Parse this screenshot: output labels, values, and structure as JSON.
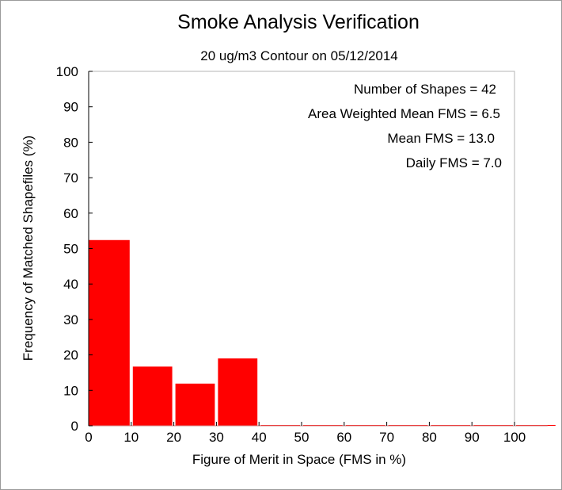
{
  "chart_data": {
    "type": "bar",
    "title": "Smoke Analysis Verification",
    "subtitle": "20 ug/m3 Contour on 05/12/2014",
    "xlabel": "Figure of Merit in Space (FMS in %)",
    "ylabel": "Frequency of Matched Shapefiles (%)",
    "xlim": [
      0,
      110
    ],
    "ylim": [
      0,
      100
    ],
    "x_ticks": [
      "0",
      "10",
      "20",
      "30",
      "40",
      "50",
      "60",
      "70",
      "80",
      "90",
      "100"
    ],
    "y_ticks": [
      "0",
      "10",
      "20",
      "30",
      "40",
      "50",
      "60",
      "70",
      "80",
      "90",
      "100"
    ],
    "bins": [
      {
        "start": 0,
        "end": 10,
        "value": 52.4
      },
      {
        "start": 10,
        "end": 20,
        "value": 16.7
      },
      {
        "start": 20,
        "end": 30,
        "value": 11.9
      },
      {
        "start": 30,
        "end": 40,
        "value": 19.0
      },
      {
        "start": 40,
        "end": 50,
        "value": 0
      },
      {
        "start": 50,
        "end": 60,
        "value": 0
      },
      {
        "start": 60,
        "end": 70,
        "value": 0
      },
      {
        "start": 70,
        "end": 80,
        "value": 0
      },
      {
        "start": 80,
        "end": 90,
        "value": 0
      },
      {
        "start": 90,
        "end": 100,
        "value": 0
      },
      {
        "start": 100,
        "end": 110,
        "value": 0
      }
    ],
    "bar_color": "#ff0000",
    "annotations": [
      "Number of Shapes = 42",
      "Area Weighted Mean FMS = 6.5",
      "Mean FMS = 13.0",
      "Daily FMS = 7.0"
    ],
    "grid": false
  }
}
